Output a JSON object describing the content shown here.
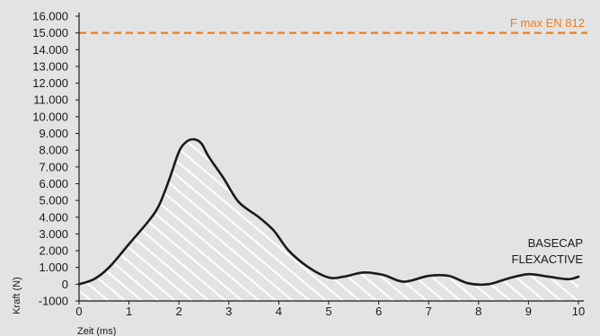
{
  "chart_data": {
    "type": "area",
    "title": "",
    "xlabel": "Zeit (ms)",
    "ylabel": "Kraft (N)",
    "xlim": [
      0,
      10
    ],
    "ylim": [
      -1000,
      16000
    ],
    "x_ticks": [
      0,
      1,
      2,
      3,
      4,
      5,
      6,
      7,
      8,
      9,
      10
    ],
    "x_tick_labels": [
      "0",
      "1",
      "2",
      "3",
      "4",
      "5",
      "6",
      "7",
      "8",
      "9",
      "10"
    ],
    "y_ticks": [
      -1000,
      0,
      1000,
      2000,
      3000,
      4000,
      5000,
      6000,
      7000,
      8000,
      9000,
      10000,
      11000,
      12000,
      13000,
      14000,
      15000,
      16000
    ],
    "y_tick_labels": [
      "-1000",
      "0",
      "1.000",
      "2.000",
      "3.000",
      "4.000",
      "5.000",
      "6.000",
      "7.000",
      "8.000",
      "9.000",
      "10.000",
      "11.000",
      "12.000",
      "13.000",
      "14.000",
      "15.000",
      "16.000"
    ],
    "series": [
      {
        "name": "BASECAP FLEXACTIVE",
        "color": "#1a1a1a",
        "fill": "hatched",
        "x": [
          0,
          0.3,
          0.6,
          1.0,
          1.4,
          1.6,
          1.8,
          2.0,
          2.15,
          2.3,
          2.45,
          2.6,
          2.9,
          3.2,
          3.6,
          3.9,
          4.2,
          4.6,
          5.0,
          5.3,
          5.7,
          6.1,
          6.5,
          7.0,
          7.4,
          7.8,
          8.2,
          8.6,
          9.0,
          9.4,
          9.8,
          10.0
        ],
        "y": [
          0,
          300,
          1000,
          2400,
          3800,
          4700,
          6200,
          7900,
          8500,
          8650,
          8400,
          7600,
          6300,
          4900,
          4000,
          3200,
          2000,
          1000,
          400,
          450,
          700,
          550,
          150,
          500,
          500,
          50,
          0,
          350,
          600,
          450,
          300,
          450
        ]
      }
    ],
    "reference_lines": [
      {
        "label": "F max EN 812",
        "y": 15000,
        "color": "#ef7d1a",
        "style": "dashed"
      }
    ],
    "series_label_lines": [
      "BASECAP",
      "FLEXACTIVE"
    ],
    "grid": false,
    "legend": "none"
  }
}
